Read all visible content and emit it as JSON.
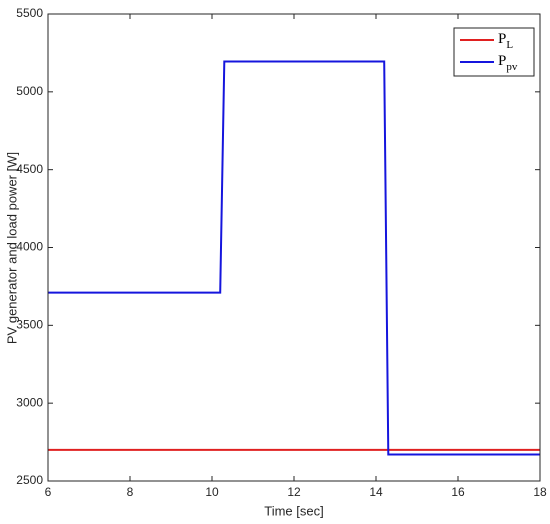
{
  "chart_data": {
    "type": "line",
    "x_label": "Time [sec]",
    "y_label": "PV generator and load power [W]",
    "x": [
      6,
      10.2,
      10.3,
      14.2,
      14.3,
      18
    ],
    "series": [
      {
        "name": "PL",
        "color": "#e02020",
        "values": [
          2700,
          2700,
          2700,
          2700,
          2700,
          2700
        ]
      },
      {
        "name": "Ppv",
        "color": "#1515dd",
        "values": [
          3710,
          3710,
          5195,
          5195,
          2670,
          2670
        ]
      }
    ],
    "xlim": [
      6,
      18
    ],
    "xticks": [
      6,
      8,
      10,
      12,
      14,
      16,
      18
    ],
    "ylim": [
      2500,
      5500
    ],
    "yticks": [
      2500,
      3000,
      3500,
      4000,
      4500,
      5000,
      5500
    ],
    "grid": false,
    "legend_position": "upper right"
  }
}
